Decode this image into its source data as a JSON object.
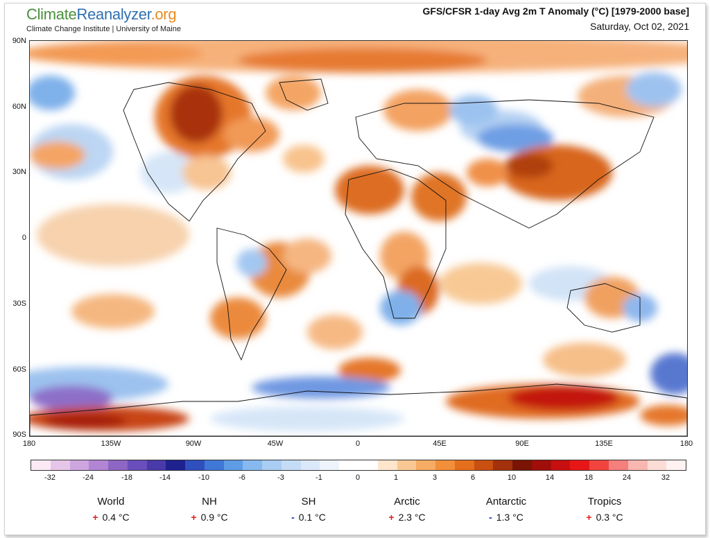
{
  "header": {
    "logo_part1": "Climate",
    "logo_part2": "Reanalyzer",
    "logo_part3": ".org",
    "logo_subtitle": "Climate Change Institute | University of Maine",
    "title": "GFS/CFSR 1-day Avg 2m T Anomaly (°C) [1979-2000 base]",
    "date": "Saturday, Oct 02, 2021"
  },
  "axes": {
    "lat_labels": [
      "90N",
      "60N",
      "30N",
      "0",
      "30S",
      "60S",
      "90S"
    ],
    "lon_labels": [
      "180",
      "135W",
      "90W",
      "45W",
      "0",
      "45E",
      "90E",
      "135E",
      "180"
    ]
  },
  "colorbar": {
    "tick_labels": [
      "-32",
      "-24",
      "-18",
      "-14",
      "-10",
      "-6",
      "-3",
      "-1",
      "0",
      "1",
      "3",
      "6",
      "10",
      "14",
      "18",
      "24",
      "32"
    ],
    "colors": [
      "#fbe9f3",
      "#e6c6e8",
      "#cda6df",
      "#b285d4",
      "#8e66c6",
      "#6a4ebb",
      "#4a3aa9",
      "#1f218f",
      "#2f4fbf",
      "#3f78d6",
      "#5e9ce6",
      "#86b9ef",
      "#a9cdf3",
      "#c5dcf6",
      "#dbe8f9",
      "#eef4fc",
      "#ffffff",
      "#ffffff",
      "#fde6cc",
      "#f9c892",
      "#f6ac64",
      "#f18f3b",
      "#e46f1c",
      "#c95010",
      "#a3310b",
      "#7a1505",
      "#a00e0a",
      "#c80f10",
      "#e71717",
      "#f2443f",
      "#f47f7c",
      "#f8b7b0",
      "#fcdcd6",
      "#fff2f0"
    ]
  },
  "stats": [
    {
      "name": "World",
      "sign": "+",
      "value": "0.4 °C"
    },
    {
      "name": "NH",
      "sign": "+",
      "value": "0.9 °C"
    },
    {
      "name": "SH",
      "sign": "-",
      "value": "0.1 °C"
    },
    {
      "name": "Arctic",
      "sign": "+",
      "value": "2.3 °C"
    },
    {
      "name": "Antarctic",
      "sign": "-",
      "value": "1.3 °C"
    },
    {
      "name": "Tropics",
      "sign": "+",
      "value": "0.3 °C"
    }
  ]
}
